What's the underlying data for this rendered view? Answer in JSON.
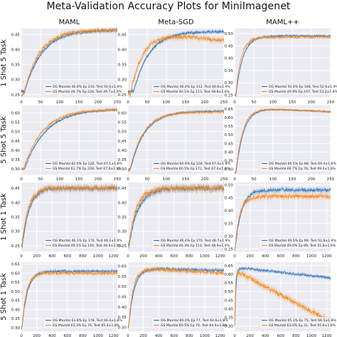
{
  "title": "Meta-Validation Accuracy Plots for MiniImagenet",
  "colors": {
    "og": "#2c72b5",
    "gs": "#f28a24",
    "bg": "#ebebf2",
    "grid": "#ffffff"
  },
  "chart_data": [
    {
      "row": 0,
      "col": 0,
      "type": "line",
      "column_title": "MAML",
      "row_label": "1 Shot 5 Task",
      "xlim": [
        0,
        250
      ],
      "xticks": [
        0,
        50,
        100,
        150,
        200,
        250
      ],
      "ylim": [
        0.24,
        0.47
      ],
      "yticks": [
        0.25,
        0.3,
        0.35,
        0.4,
        0.45
      ],
      "legend_position": "bottom-right",
      "legend_dx": -6,
      "series": [
        {
          "name": "OG MaxVal 46.6% Ep 210, Test 50.0±1.9%",
          "shape": [
            0.26,
            0.465,
            30,
            45,
            0.004
          ]
        },
        {
          "name": "GS MaxVal 46.7% Ep 228, Test 49.7±1.9%",
          "shape": [
            0.25,
            0.465,
            22,
            40,
            0.005
          ]
        }
      ]
    },
    {
      "row": 0,
      "col": 1,
      "type": "line",
      "column_title": "Meta-SGD",
      "row_label": "1 Shot 5 Task",
      "xlim": [
        0,
        250
      ],
      "xticks": [
        0,
        50,
        100,
        150,
        200,
        250
      ],
      "ylim": [
        0.24,
        0.47
      ],
      "yticks": [
        0.25,
        0.3,
        0.35,
        0.4,
        0.45
      ],
      "legend_position": "bottom-right",
      "legend_dx": -4,
      "series": [
        {
          "name": "OG MaxVal 46.4% Ep 112, Test 48.8±1.9%",
          "shape": [
            0.26,
            0.46,
            50,
            40,
            0.004
          ]
        },
        {
          "name": "GS MaxVal 46.1% Ep 113, Test 48.8±1.8%",
          "shape": [
            0.25,
            0.455,
            20,
            32,
            0.006,
            0.00013
          ]
        }
      ]
    },
    {
      "row": 0,
      "col": 2,
      "type": "line",
      "column_title": "MAML++",
      "row_label": "1 Shot 5 Task",
      "xlim": [
        0,
        250
      ],
      "xticks": [
        0,
        50,
        100,
        150,
        200,
        250
      ],
      "ylim": [
        0.24,
        0.52
      ],
      "yticks": [
        0.25,
        0.3,
        0.35,
        0.4,
        0.45,
        0.5
      ],
      "legend_position": "bottom-right",
      "legend_dx": -2,
      "series": [
        {
          "name": "OG MaxVal 50.0% Ep 168, Test 52.6±1.9%",
          "shape": [
            0.25,
            0.49,
            12,
            18,
            0.003
          ]
        },
        {
          "name": "GS MaxVal 49.9% Ep 197, Test 53.2±1.8%",
          "shape": [
            0.25,
            0.485,
            10,
            14,
            0.004
          ]
        }
      ]
    },
    {
      "row": 1,
      "col": 0,
      "type": "line",
      "column_title": "",
      "row_label": "5 Shot 5 Task",
      "xlim": [
        0,
        250
      ],
      "xticks": [
        0,
        50,
        100,
        150,
        200,
        250
      ],
      "ylim": [
        0.27,
        0.64
      ],
      "yticks": [
        0.3,
        0.35,
        0.4,
        0.45,
        0.5,
        0.55,
        0.6
      ],
      "legend_position": "bottom-right",
      "legend_dx": -6,
      "series": [
        {
          "name": "OG MaxVal 62.0% Ep 226, Test 67.1±1.8%",
          "shape": [
            0.3,
            0.62,
            28,
            55,
            0.004
          ]
        },
        {
          "name": "GS MaxVal 61.7% Ep 228, Test 67.6±1.8%",
          "shape": [
            0.3,
            0.62,
            20,
            50,
            0.005
          ]
        }
      ]
    },
    {
      "row": 1,
      "col": 1,
      "type": "line",
      "column_title": "",
      "row_label": "5 Shot 5 Task",
      "xlim": [
        0,
        250
      ],
      "xticks": [
        0,
        50,
        100,
        150,
        200,
        250
      ],
      "ylim": [
        0.27,
        0.64
      ],
      "yticks": [
        0.3,
        0.35,
        0.4,
        0.45,
        0.5,
        0.55,
        0.6
      ],
      "legend_position": "bottom-right",
      "legend_dx": -4,
      "series": [
        {
          "name": "OG MaxVal 60.9% Ep 128, Test 67.4±1.8%",
          "shape": [
            0.3,
            0.61,
            22,
            38,
            0.004
          ]
        },
        {
          "name": "GS MaxVal 60.5% Ep 172, Test 67.4±1.8%",
          "shape": [
            0.29,
            0.605,
            14,
            35,
            0.005
          ]
        }
      ]
    },
    {
      "row": 1,
      "col": 2,
      "type": "line",
      "column_title": "",
      "row_label": "5 Shot 5 Task",
      "xlim": [
        0,
        250
      ],
      "xticks": [
        0,
        50,
        100,
        150,
        200,
        250
      ],
      "ylim": [
        0.27,
        0.67
      ],
      "yticks": [
        0.3,
        0.35,
        0.4,
        0.45,
        0.5,
        0.55,
        0.6,
        0.65
      ],
      "legend_position": "bottom-right",
      "legend_dx": -2,
      "series": [
        {
          "name": "OG MaxVal 66.5% Ep 88, Test 69.4±1.8%",
          "shape": [
            0.28,
            0.655,
            12,
            20,
            0.003,
            0.0001
          ]
        },
        {
          "name": "GS MaxVal 66.7% Ep 78, Test 69.4±1.8%",
          "shape": [
            0.28,
            0.655,
            10,
            18,
            0.004,
            0.0001
          ]
        }
      ]
    },
    {
      "row": 2,
      "col": 0,
      "type": "line",
      "column_title": "",
      "row_label": "1 Shot 1 Task",
      "xlim": [
        0,
        1250
      ],
      "xticks": [
        0,
        200,
        400,
        600,
        800,
        1000,
        1200
      ],
      "ylim": [
        0.23,
        0.47
      ],
      "yticks": [
        0.25,
        0.3,
        0.35,
        0.4,
        0.45
      ],
      "legend_position": "bottom-right",
      "legend_dx": -6,
      "series": [
        {
          "name": "OG MaxVal 46.1% Ep 170, Test 49.2±1.9%",
          "shape": [
            0.25,
            0.45,
            40,
            90,
            0.006
          ]
        },
        {
          "name": "GS MaxVal 46.1% Ep 140, Test 49.0±1.9%",
          "shape": [
            0.25,
            0.45,
            30,
            80,
            0.007
          ]
        }
      ]
    },
    {
      "row": 2,
      "col": 1,
      "type": "line",
      "column_title": "",
      "row_label": "1 Shot 1 Task",
      "xlim": [
        0,
        1250
      ],
      "xticks": [
        0,
        200,
        400,
        600,
        800,
        1000,
        1200
      ],
      "ylim": [
        0.23,
        0.47
      ],
      "yticks": [
        0.25,
        0.3,
        0.35,
        0.4,
        0.45
      ],
      "legend_position": "bottom-right",
      "legend_dx": -4,
      "series": [
        {
          "name": "OG MaxVal 46.4% Ep 170, Test 48.7±1.9%",
          "shape": [
            0.25,
            0.45,
            40,
            120,
            0.007
          ]
        },
        {
          "name": "GS MaxVal 46.3% Ep 114, Test 48.9±1.9%",
          "shape": [
            0.25,
            0.45,
            30,
            100,
            0.008
          ]
        }
      ]
    },
    {
      "row": 2,
      "col": 2,
      "type": "line",
      "column_title": "",
      "row_label": "1 Shot 1 Task",
      "xlim": [
        0,
        1250
      ],
      "xticks": [
        0,
        200,
        400,
        600,
        800,
        1000,
        1200
      ],
      "ylim": [
        0.24,
        0.51
      ],
      "yticks": [
        0.25,
        0.3,
        0.35,
        0.4,
        0.45,
        0.5
      ],
      "legend_position": "bottom-right",
      "legend_dx": -2,
      "series": [
        {
          "name": "OG MaxVal 49.5% Ep 99, Test 52.8±1.9%",
          "shape": [
            0.25,
            0.48,
            25,
            80,
            0.006
          ]
        },
        {
          "name": "GS MaxVal 49.0% Ep 89, Test 51.8±1.9%",
          "shape": [
            0.25,
            0.455,
            20,
            60,
            0.007
          ]
        }
      ]
    },
    {
      "row": 3,
      "col": 0,
      "type": "line",
      "column_title": "",
      "row_label": "5 Shot 1 Task",
      "xlim": [
        0,
        1250
      ],
      "xticks": [
        0,
        200,
        400,
        600,
        800,
        1000,
        1200
      ],
      "ylim": [
        0.28,
        0.66
      ],
      "yticks": [
        0.3,
        0.35,
        0.4,
        0.45,
        0.5,
        0.55,
        0.6,
        0.65
      ],
      "legend_position": "bottom-right",
      "legend_dx": -6,
      "series": [
        {
          "name": "OG MaxVal 63.8% Ep 178, Test 66.4±1.8%",
          "shape": [
            0.3,
            0.61,
            30,
            70,
            0.006
          ]
        },
        {
          "name": "GS MaxVal 61.3% Ep 76, Test 65.4±1.8%",
          "shape": [
            0.3,
            0.6,
            25,
            60,
            0.007
          ]
        }
      ]
    },
    {
      "row": 3,
      "col": 1,
      "type": "line",
      "column_title": "",
      "row_label": "5 Shot 1 Task",
      "xlim": [
        0,
        1250
      ],
      "xticks": [
        0,
        200,
        400,
        600,
        800,
        1000,
        1200
      ],
      "ylim": [
        0.28,
        0.62
      ],
      "yticks": [
        0.3,
        0.35,
        0.4,
        0.45,
        0.5,
        0.55,
        0.6
      ],
      "legend_position": "bottom-right",
      "legend_dx": -4,
      "series": [
        {
          "name": "OG MaxVal 60.0% Ep 77, Test 64.6±1.8%",
          "shape": [
            0.3,
            0.59,
            30,
            70,
            0.006,
            1e-05
          ]
        },
        {
          "name": "GS MaxVal 60.5% Ep 74, Test 64.9±1.8%",
          "shape": [
            0.3,
            0.59,
            25,
            60,
            0.007,
            2e-05
          ]
        }
      ]
    },
    {
      "row": 3,
      "col": 2,
      "type": "line",
      "column_title": "",
      "row_label": "5 Shot 1 Task",
      "xlim": [
        0,
        1250
      ],
      "xticks": [
        0,
        200,
        400,
        600,
        800,
        1000,
        1200
      ],
      "ylim": [
        0.27,
        0.67
      ],
      "yticks": [
        0.3,
        0.35,
        0.4,
        0.45,
        0.5,
        0.55,
        0.6,
        0.65
      ],
      "legend_position": "bottom-right",
      "legend_dx": -2,
      "series": [
        {
          "name": "OG MaxVal 65.3% Ep 75, Test 66.5±1.8%",
          "shape": [
            0.3,
            0.64,
            8,
            15,
            0.006,
            5e-05
          ]
        },
        {
          "name": "GS MaxVal 63.0% Ep 31, Test 65.6±1.8%",
          "shape": [
            0.3,
            0.62,
            6,
            10,
            0.012,
            0.00024
          ]
        }
      ]
    }
  ]
}
